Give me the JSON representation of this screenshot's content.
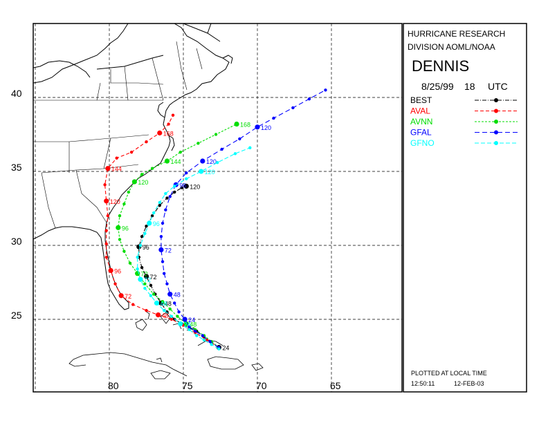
{
  "panel": {
    "org_line1": "HURRICANE RESEARCH",
    "org_line2": "DIVISION AOML/NOAA",
    "storm_name": "DENNIS",
    "date": "8/25/99",
    "hour": "18",
    "tz": "UTC",
    "plotted_note": "PLOTTED AT LOCAL TIME",
    "plot_time": "12:50:11",
    "plot_date": "12-FEB-03"
  },
  "axes": {
    "lat_labels": [
      "40",
      "35",
      "30",
      "25"
    ],
    "lon_labels": [
      "80",
      "75",
      "70",
      "65"
    ]
  },
  "legend": [
    {
      "name": "BEST",
      "color": "#000000"
    },
    {
      "name": "AVAL",
      "color": "#ff0000"
    },
    {
      "name": "AVNN",
      "color": "#00dd00"
    },
    {
      "name": "GFAL",
      "color": "#0000ff"
    },
    {
      "name": "GFNO",
      "color": "#00ffff"
    }
  ],
  "tracks": [
    {
      "name": "BEST",
      "color": "#000000",
      "points": [
        [
          -72.6,
          23.1
        ],
        [
          -73.1,
          23.4
        ],
        [
          -73.6,
          23.8
        ],
        [
          -74.1,
          24.2
        ],
        [
          -74.6,
          24.4
        ],
        [
          -75.1,
          24.7
        ],
        [
          -75.6,
          25.0
        ],
        [
          -76.1,
          25.5
        ],
        [
          -76.5,
          26.1
        ],
        [
          -76.9,
          26.7
        ],
        [
          -77.2,
          27.3
        ],
        [
          -77.5,
          27.9
        ],
        [
          -77.8,
          28.5
        ],
        [
          -78.0,
          29.2
        ],
        [
          -78.0,
          29.9
        ],
        [
          -77.8,
          30.6
        ],
        [
          -77.5,
          31.3
        ],
        [
          -77.1,
          32.0
        ],
        [
          -76.6,
          32.7
        ],
        [
          -76.1,
          33.2
        ],
        [
          -75.6,
          33.6
        ],
        [
          -75.1,
          33.9
        ],
        [
          -74.8,
          34.0
        ]
      ],
      "labels": [
        {
          "i": 0,
          "text": "24"
        },
        {
          "i": 8,
          "text": "48"
        },
        {
          "i": 11,
          "text": "72"
        },
        {
          "i": 14,
          "text": "96"
        },
        {
          "i": 22,
          "text": "120"
        }
      ]
    },
    {
      "name": "AVAL",
      "color": "#ff0000",
      "points": [
        [
          -72.6,
          23.1
        ],
        [
          -73.4,
          23.6
        ],
        [
          -74.2,
          24.1
        ],
        [
          -75.0,
          24.6
        ],
        [
          -75.8,
          25.0
        ],
        [
          -76.7,
          25.3
        ],
        [
          -77.5,
          25.6
        ],
        [
          -78.4,
          26.0
        ],
        [
          -79.2,
          26.6
        ],
        [
          -79.6,
          27.4
        ],
        [
          -79.9,
          28.3
        ],
        [
          -80.2,
          29.2
        ],
        [
          -80.2,
          30.1
        ],
        [
          -80.2,
          31.0
        ],
        [
          -80.1,
          32.0
        ],
        [
          -80.2,
          33.0
        ],
        [
          -80.3,
          34.1
        ],
        [
          -80.1,
          35.2
        ],
        [
          -79.5,
          35.9
        ],
        [
          -78.5,
          36.3
        ],
        [
          -77.5,
          37.0
        ],
        [
          -76.6,
          37.6
        ],
        [
          -76.0,
          38.2
        ],
        [
          -75.7,
          38.8
        ]
      ],
      "labels": [
        {
          "i": 5,
          "text": "48"
        },
        {
          "i": 8,
          "text": "72"
        },
        {
          "i": 10,
          "text": "96"
        },
        {
          "i": 15,
          "text": "120"
        },
        {
          "i": 17,
          "text": "144"
        },
        {
          "i": 21,
          "text": "168"
        }
      ]
    },
    {
      "name": "AVNN",
      "color": "#00dd00",
      "points": [
        [
          -72.6,
          23.1
        ],
        [
          -73.1,
          23.5
        ],
        [
          -73.6,
          23.9
        ],
        [
          -74.2,
          24.3
        ],
        [
          -74.8,
          24.7
        ],
        [
          -75.4,
          25.2
        ],
        [
          -75.9,
          25.7
        ],
        [
          -76.4,
          26.2
        ],
        [
          -77.0,
          26.7
        ],
        [
          -77.6,
          27.4
        ],
        [
          -78.1,
          28.1
        ],
        [
          -78.6,
          28.8
        ],
        [
          -79.0,
          29.6
        ],
        [
          -79.3,
          30.4
        ],
        [
          -79.4,
          31.2
        ],
        [
          -79.3,
          32.0
        ],
        [
          -79.0,
          32.8
        ],
        [
          -78.7,
          33.6
        ],
        [
          -78.3,
          34.3
        ],
        [
          -77.8,
          34.8
        ],
        [
          -77.1,
          35.2
        ],
        [
          -76.1,
          35.7
        ],
        [
          -75.2,
          36.3
        ],
        [
          -74.0,
          36.9
        ],
        [
          -72.8,
          37.5
        ],
        [
          -71.4,
          38.2
        ]
      ],
      "labels": [
        {
          "i": 4,
          "text": "48"
        },
        {
          "i": 10,
          "text": "72"
        },
        {
          "i": 14,
          "text": "96"
        },
        {
          "i": 18,
          "text": "120"
        },
        {
          "i": 21,
          "text": "144"
        },
        {
          "i": 25,
          "text": "168"
        }
      ]
    },
    {
      "name": "GFAL",
      "color": "#0000ff",
      "points": [
        [
          -72.6,
          23.1
        ],
        [
          -73.2,
          23.5
        ],
        [
          -73.7,
          23.9
        ],
        [
          -74.2,
          24.2
        ],
        [
          -74.6,
          24.5
        ],
        [
          -74.9,
          25.0
        ],
        [
          -75.3,
          25.5
        ],
        [
          -75.6,
          26.1
        ],
        [
          -75.9,
          26.7
        ],
        [
          -76.1,
          27.4
        ],
        [
          -76.3,
          28.1
        ],
        [
          -76.4,
          28.9
        ],
        [
          -76.5,
          29.7
        ],
        [
          -76.5,
          30.6
        ],
        [
          -76.4,
          31.5
        ],
        [
          -76.2,
          32.4
        ],
        [
          -75.9,
          33.3
        ],
        [
          -75.5,
          34.1
        ],
        [
          -74.8,
          34.9
        ],
        [
          -73.7,
          35.7
        ],
        [
          -72.4,
          36.5
        ],
        [
          -71.2,
          37.2
        ],
        [
          -70.0,
          38.0
        ],
        [
          -68.9,
          38.6
        ],
        [
          -67.6,
          39.3
        ],
        [
          -66.5,
          39.9
        ],
        [
          -65.4,
          40.5
        ]
      ],
      "labels": [
        {
          "i": 5,
          "text": "24"
        },
        {
          "i": 8,
          "text": "48"
        },
        {
          "i": 12,
          "text": "72"
        },
        {
          "i": 17,
          "text": "96"
        },
        {
          "i": 19,
          "text": "120"
        },
        {
          "i": 22,
          "text": "120"
        }
      ]
    },
    {
      "name": "GFNO",
      "color": "#00ffff",
      "points": [
        [
          -72.6,
          23.0
        ],
        [
          -73.1,
          23.3
        ],
        [
          -73.6,
          23.6
        ],
        [
          -74.1,
          23.9
        ],
        [
          -74.6,
          24.3
        ],
        [
          -75.2,
          24.7
        ],
        [
          -75.8,
          25.2
        ],
        [
          -76.3,
          25.6
        ],
        [
          -76.8,
          26.1
        ],
        [
          -77.2,
          26.6
        ],
        [
          -77.6,
          27.1
        ],
        [
          -77.9,
          27.7
        ],
        [
          -78.1,
          28.4
        ],
        [
          -78.1,
          29.2
        ],
        [
          -77.9,
          30.0
        ],
        [
          -77.6,
          30.8
        ],
        [
          -77.3,
          31.5
        ],
        [
          -77.0,
          32.2
        ],
        [
          -76.6,
          32.9
        ],
        [
          -76.2,
          33.5
        ],
        [
          -75.6,
          34.0
        ],
        [
          -74.8,
          34.5
        ],
        [
          -73.8,
          35.0
        ],
        [
          -72.7,
          35.6
        ],
        [
          -71.5,
          36.2
        ],
        [
          -70.5,
          36.6
        ]
      ],
      "labels": [
        {
          "i": 5,
          "text": "24"
        },
        {
          "i": 8,
          "text": "48"
        },
        {
          "i": 11,
          "text": "72"
        },
        {
          "i": 16,
          "text": "96"
        },
        {
          "i": 22,
          "text": "120"
        }
      ]
    }
  ]
}
